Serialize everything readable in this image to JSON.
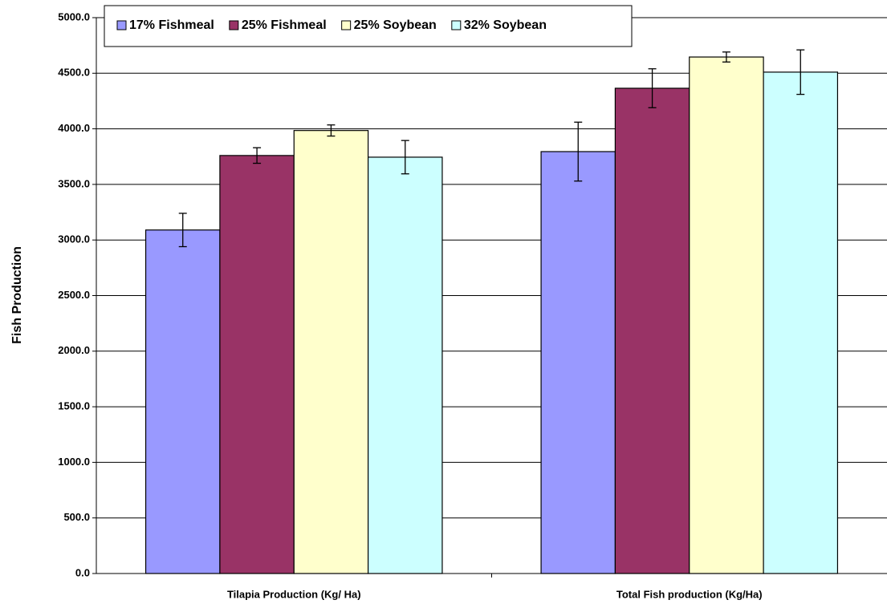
{
  "chart_data": {
    "type": "bar",
    "ylabel": "Fish Production",
    "categories": [
      "Tilapia Production (Kg/ Ha)",
      "Total Fish production (Kg/Ha)"
    ],
    "series": [
      {
        "name": "17% Fishmeal",
        "color": "#9999ff",
        "values": [
          3090,
          3795
        ],
        "errors": [
          150,
          265
        ]
      },
      {
        "name": "25% Fishmeal",
        "color": "#993366",
        "values": [
          3760,
          4365
        ],
        "errors": [
          70,
          175
        ]
      },
      {
        "name": "25% Soybean",
        "color": "#ffffcc",
        "values": [
          3985,
          4646
        ],
        "errors": [
          50,
          45
        ]
      },
      {
        "name": "32% Soybean",
        "color": "#ccffff",
        "values": [
          3745,
          4510
        ],
        "errors": [
          150,
          200
        ]
      }
    ],
    "ylim": [
      0,
      5000
    ],
    "yticks": [
      {
        "value": 0,
        "label": "0.0"
      },
      {
        "value": 500,
        "label": "500.0"
      },
      {
        "value": 1000,
        "label": "1000.0"
      },
      {
        "value": 1500,
        "label": "1500.0"
      },
      {
        "value": 2000,
        "label": "2000.0"
      },
      {
        "value": 2500,
        "label": "2500.0"
      },
      {
        "value": 3000,
        "label": "3000.0"
      },
      {
        "value": 3500,
        "label": "3500.0"
      },
      {
        "value": 4000,
        "label": "4000.0"
      },
      {
        "value": 4500,
        "label": "4500.0"
      },
      {
        "value": 5000,
        "label": "5000.0"
      }
    ],
    "grid": true
  }
}
